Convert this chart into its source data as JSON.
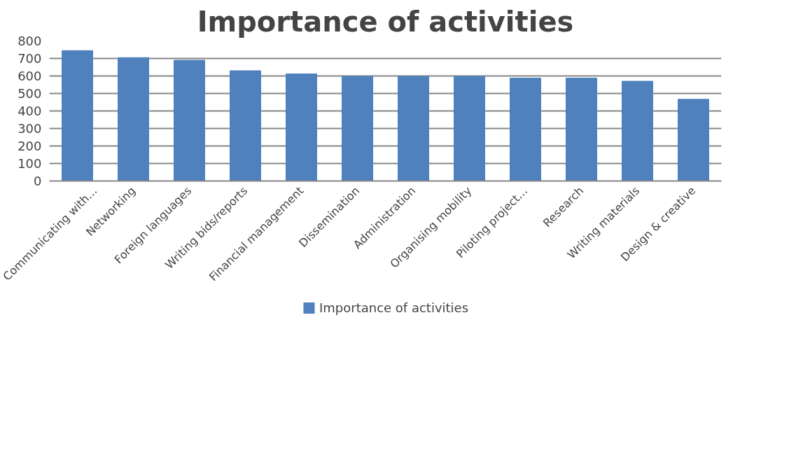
{
  "chart_data": {
    "type": "bar",
    "title": "Importance of activities",
    "categories": [
      "Communicating with…",
      "Networking",
      "Foreign languages",
      "Writing bids/reports",
      "Financial management",
      "Dissemination",
      "Administration",
      "Organising mobility",
      "Piloting project…",
      "Research",
      "Writing materials",
      "Design & creative"
    ],
    "series": [
      {
        "name": "Importance of activities",
        "color": "#4f81bd",
        "values": [
          745,
          705,
          690,
          630,
          612,
          598,
          598,
          598,
          588,
          588,
          570,
          467
        ]
      }
    ],
    "ylim": [
      0,
      800
    ],
    "yticks": [
      0,
      100,
      200,
      300,
      400,
      500,
      600,
      700,
      800
    ],
    "grid": "y",
    "legend": "bottom"
  }
}
